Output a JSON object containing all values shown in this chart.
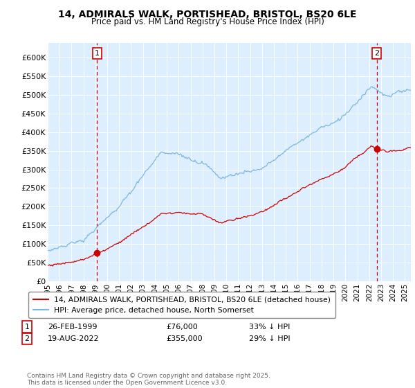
{
  "title": "14, ADMIRALS WALK, PORTISHEAD, BRISTOL, BS20 6LE",
  "subtitle": "Price paid vs. HM Land Registry's House Price Index (HPI)",
  "hpi_label": "HPI: Average price, detached house, North Somerset",
  "property_label": "14, ADMIRALS WALK, PORTISHEAD, BRISTOL, BS20 6LE (detached house)",
  "hpi_color": "#7ab8e0",
  "property_color": "#cc0000",
  "dashed_color": "#cc0000",
  "chart_bg": "#ddeeff",
  "annotation1": {
    "num": "1",
    "date": "26-FEB-1999",
    "price": "£76,000",
    "note": "33% ↓ HPI"
  },
  "annotation2": {
    "num": "2",
    "date": "19-AUG-2022",
    "price": "£355,000",
    "note": "29% ↓ HPI"
  },
  "ylim": [
    0,
    640000
  ],
  "yticks": [
    0,
    50000,
    100000,
    150000,
    200000,
    250000,
    300000,
    350000,
    400000,
    450000,
    500000,
    550000,
    600000
  ],
  "ytick_labels": [
    "£0",
    "£50K",
    "£100K",
    "£150K",
    "£200K",
    "£250K",
    "£300K",
    "£350K",
    "£400K",
    "£450K",
    "£500K",
    "£550K",
    "£600K"
  ],
  "footer": "Contains HM Land Registry data © Crown copyright and database right 2025.\nThis data is licensed under the Open Government Licence v3.0.",
  "vline1_x": 1999.15,
  "vline2_x": 2022.63,
  "sale1_x": 1999.15,
  "sale1_y": 76000,
  "sale2_x": 2022.63,
  "sale2_y": 355000,
  "xmin": 1995,
  "xmax": 2025.5
}
